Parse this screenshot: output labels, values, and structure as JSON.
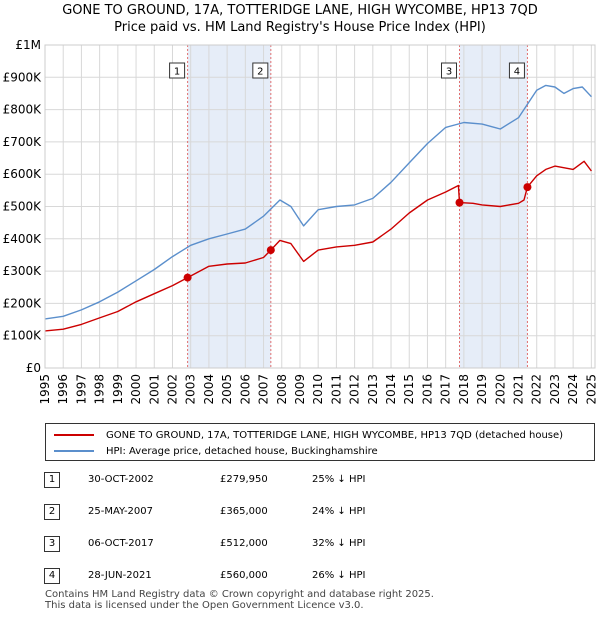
{
  "title_line1": "GONE TO GROUND, 17A, TOTTERIDGE LANE, HIGH WYCOMBE, HP13 7QD",
  "title_line2": "Price paid vs. HM Land Registry's House Price Index (HPI)",
  "chart_data": {
    "type": "line",
    "title": "GONE TO GROUND, 17A, TOTTERIDGE LANE, HIGH WYCOMBE, HP13 7QD — Price paid vs. HM Land Registry's House Price Index (HPI)",
    "xlim": [
      1995,
      2025.2
    ],
    "ylim": [
      0,
      1000000
    ],
    "y_ticks": [
      0,
      100000,
      200000,
      300000,
      400000,
      500000,
      600000,
      700000,
      800000,
      900000,
      1000000
    ],
    "y_tick_labels": [
      "£0",
      "£100K",
      "£200K",
      "£300K",
      "£400K",
      "£500K",
      "£600K",
      "£700K",
      "£800K",
      "£900K",
      "£1M"
    ],
    "x_ticks": [
      1995,
      1996,
      1997,
      1998,
      1999,
      2000,
      2001,
      2002,
      2003,
      2004,
      2005,
      2006,
      2007,
      2008,
      2009,
      2010,
      2011,
      2012,
      2013,
      2014,
      2015,
      2016,
      2017,
      2018,
      2019,
      2020,
      2021,
      2022,
      2023,
      2024,
      2025
    ],
    "x_tick_labels": [
      "1995",
      "1996",
      "1997",
      "1998",
      "1999",
      "2000",
      "2001",
      "2002",
      "2003",
      "2004",
      "2005",
      "2006",
      "2007",
      "2008",
      "2009",
      "2010",
      "2011",
      "2012",
      "2013",
      "2014",
      "2015",
      "2016",
      "2017",
      "2018",
      "2019",
      "2020",
      "2021",
      "2022",
      "2023",
      "2024",
      "2025"
    ],
    "grid": true,
    "shaded_ranges": [
      [
        2002.83,
        2007.4
      ],
      [
        2017.76,
        2021.49
      ]
    ],
    "series": [
      {
        "name": "GONE TO GROUND, 17A, TOTTERIDGE LANE, HIGH WYCOMBE, HP13 7QD (detached house)",
        "color": "#cc0000",
        "x": [
          1995.0,
          1996.0,
          1997.0,
          1998.0,
          1999.0,
          2000.0,
          2001.0,
          2002.0,
          2002.83,
          2003.5,
          2004.0,
          2005.0,
          2006.0,
          2007.0,
          2007.4,
          2007.9,
          2008.5,
          2009.2,
          2010.0,
          2011.0,
          2012.0,
          2013.0,
          2014.0,
          2015.0,
          2016.0,
          2017.0,
          2017.7,
          2017.76,
          2018.5,
          2019.0,
          2020.0,
          2021.0,
          2021.3,
          2021.49,
          2022.0,
          2022.5,
          2023.0,
          2024.0,
          2024.6,
          2025.0
        ],
        "y": [
          115000,
          120000,
          135000,
          155000,
          175000,
          205000,
          230000,
          255000,
          279950,
          300000,
          315000,
          322000,
          325000,
          342000,
          365000,
          395000,
          385000,
          330000,
          365000,
          375000,
          380000,
          390000,
          430000,
          480000,
          520000,
          545000,
          565000,
          512000,
          510000,
          505000,
          500000,
          510000,
          520000,
          560000,
          595000,
          615000,
          625000,
          615000,
          640000,
          610000
        ]
      },
      {
        "name": "HPI: Average price, detached house, Buckinghamshire",
        "color": "#5b8fcc",
        "x": [
          1995.0,
          1996.0,
          1997.0,
          1998.0,
          1999.0,
          2000.0,
          2001.0,
          2002.0,
          2003.0,
          2004.0,
          2005.0,
          2006.0,
          2007.0,
          2007.9,
          2008.5,
          2009.2,
          2010.0,
          2011.0,
          2012.0,
          2013.0,
          2014.0,
          2015.0,
          2016.0,
          2017.0,
          2018.0,
          2019.0,
          2020.0,
          2021.0,
          2022.0,
          2022.5,
          2023.0,
          2023.5,
          2024.0,
          2024.5,
          2025.0
        ],
        "y": [
          152000,
          160000,
          180000,
          205000,
          235000,
          270000,
          305000,
          345000,
          380000,
          400000,
          415000,
          430000,
          470000,
          520000,
          500000,
          440000,
          490000,
          500000,
          505000,
          525000,
          575000,
          635000,
          695000,
          745000,
          760000,
          755000,
          740000,
          775000,
          860000,
          875000,
          870000,
          850000,
          865000,
          870000,
          840000
        ]
      }
    ],
    "sales": [
      {
        "label": "1",
        "x": 2002.83,
        "y": 279950
      },
      {
        "label": "2",
        "x": 2007.4,
        "y": 365000
      },
      {
        "label": "3",
        "x": 2017.76,
        "y": 512000
      },
      {
        "label": "4",
        "x": 2021.49,
        "y": 560000
      }
    ]
  },
  "legend": {
    "property": "GONE TO GROUND, 17A, TOTTERIDGE LANE, HIGH WYCOMBE, HP13 7QD (detached house)",
    "hpi": "HPI: Average price, detached house, Buckinghamshire"
  },
  "transactions": [
    {
      "num": "1",
      "date": "30-OCT-2002",
      "price": "£279,950",
      "hpi": "25% ↓ HPI"
    },
    {
      "num": "2",
      "date": "25-MAY-2007",
      "price": "£365,000",
      "hpi": "24% ↓ HPI"
    },
    {
      "num": "3",
      "date": "06-OCT-2017",
      "price": "£512,000",
      "hpi": "32% ↓ HPI"
    },
    {
      "num": "4",
      "date": "28-JUN-2021",
      "price": "£560,000",
      "hpi": "26% ↓ HPI"
    }
  ],
  "footer": {
    "line1": "Contains HM Land Registry data © Crown copyright and database right 2025.",
    "line2": "This data is licensed under the Open Government Licence v3.0."
  }
}
